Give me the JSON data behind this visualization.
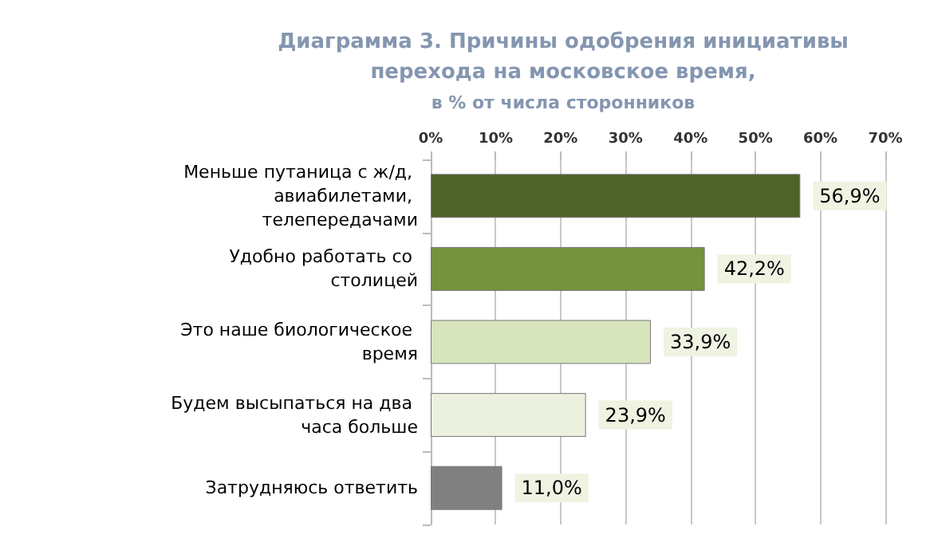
{
  "chart_data": {
    "type": "bar",
    "orientation": "horizontal",
    "title": "Диаграмма 3. Причины одобрения инициативы\nперехода на московское время,",
    "subtitle": "в % от числа сторонников",
    "categories": [
      "Меньше путаница с ж/д, авиабилетами, телепередачами",
      "Удобно работать со столицей",
      "Это наше биологическое время",
      "Будем высыпаться на два часа больше",
      "Затрудняюсь ответить"
    ],
    "values": [
      56.9,
      42.2,
      33.9,
      23.9,
      11.0
    ],
    "colors": [
      "#4f6228",
      "#76923c",
      "#d7e4bc",
      "#ebf1de",
      "#808080"
    ],
    "value_labels": [
      "56,9%",
      "42,2%",
      "33,9%",
      "23,9%",
      "11,0%"
    ],
    "xlim": [
      0,
      70
    ],
    "xticks": [
      {
        "value": 0,
        "label": "0%"
      },
      {
        "value": 10,
        "label": "10%"
      },
      {
        "value": 20,
        "label": "20%"
      },
      {
        "value": 30,
        "label": "30%"
      },
      {
        "value": 40,
        "label": "40%"
      },
      {
        "value": 50,
        "label": "50%"
      },
      {
        "value": 60,
        "label": "60%"
      },
      {
        "value": 70,
        "label": "70%"
      }
    ],
    "grid": "x"
  }
}
